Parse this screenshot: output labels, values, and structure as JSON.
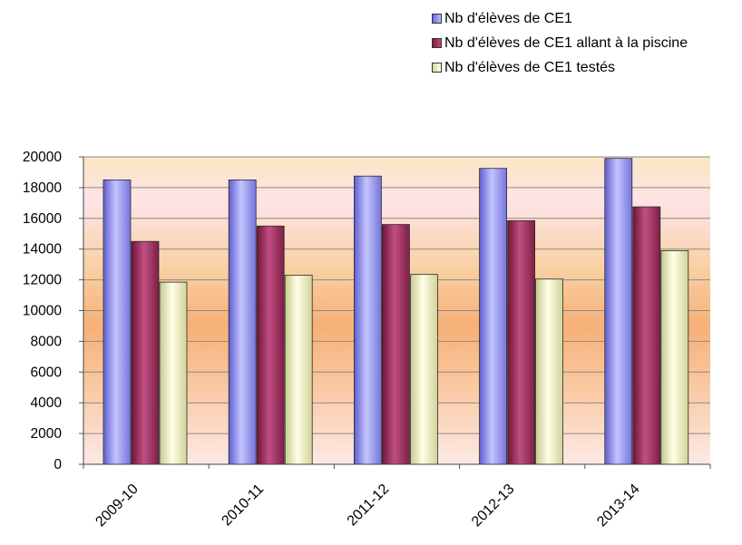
{
  "chart_data": {
    "type": "bar",
    "categories": [
      "2009-10",
      "2010-11",
      "2011-12",
      "2012-13",
      "2013-14"
    ],
    "series": [
      {
        "name": "Nb d'élèves de CE1",
        "color": "#8c8cf0",
        "values": [
          18500,
          18500,
          18750,
          19250,
          19900
        ]
      },
      {
        "name": "Nb d'élèves de CE1 allant à la piscine",
        "color": "#9e2c5c",
        "values": [
          14500,
          15500,
          15600,
          15850,
          16750
        ]
      },
      {
        "name": "Nb d'élèves de CE1 testés",
        "color": "#f2f2c0",
        "values": [
          11850,
          12300,
          12350,
          12050,
          13900
        ]
      }
    ],
    "ylim": [
      0,
      20000
    ],
    "yticks": [
      "0",
      "2000",
      "4000",
      "6000",
      "8000",
      "10000",
      "12000",
      "14000",
      "16000",
      "18000",
      "20000"
    ],
    "grid": true,
    "legend_position": "top-right"
  }
}
